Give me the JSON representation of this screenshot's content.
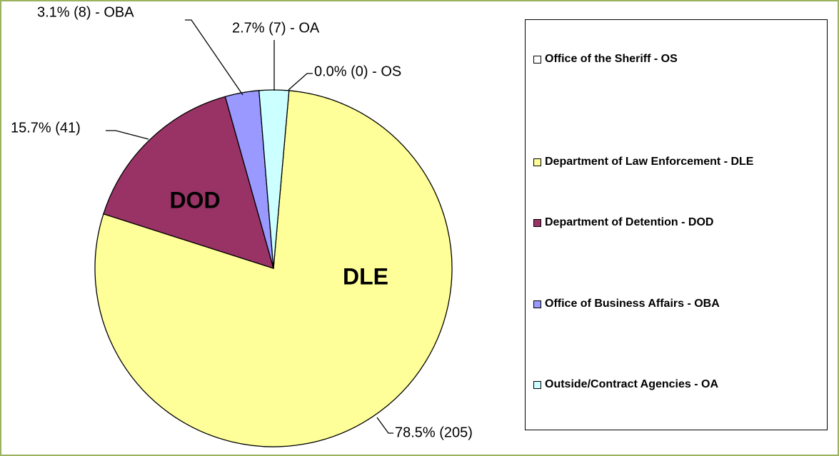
{
  "chart_data": {
    "type": "pie",
    "categories": [
      "Office of the Sheriff - OS",
      "Department of Law Enforcement - DLE",
      "Department of Detention - DOD",
      "Office of Business Affairs - OBA",
      "Outside/Contract Agencies - OA"
    ],
    "values": [
      0,
      205,
      41,
      8,
      7
    ],
    "value_labels": [
      "0.0% (0) - OS",
      "78.5% (205)",
      "15.7% (41)",
      "3.1% (8) - OBA",
      "2.7% (7) - OA"
    ],
    "slice_labels": [
      null,
      "DLE",
      "DOD",
      null,
      null
    ],
    "colors": [
      "#ffffff",
      "#ffff99",
      "#993366",
      "#9999ff",
      "#ccffff"
    ],
    "legend": "right"
  }
}
